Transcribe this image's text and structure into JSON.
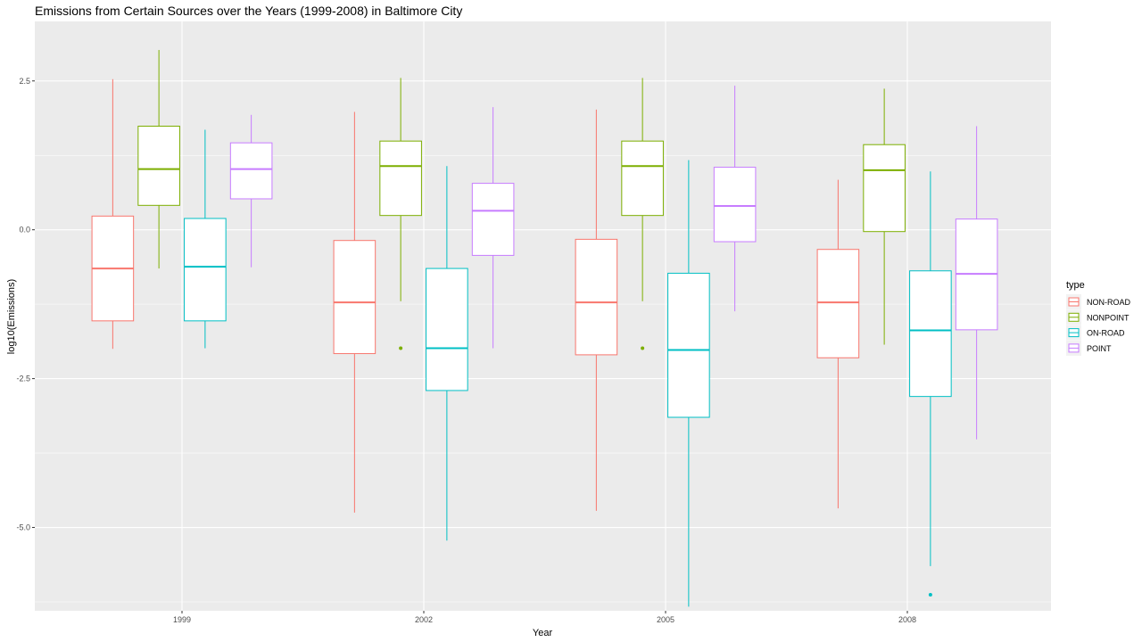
{
  "chart_data": {
    "type": "boxplot",
    "title": "Emissions from Certain Sources over the Years (1999-2008) in Baltimore City",
    "xlabel": "Year",
    "ylabel": "log10(Emissions)",
    "categories": [
      "1999",
      "2002",
      "2005",
      "2008"
    ],
    "ylim": [
      -6.4,
      3.5
    ],
    "yticks": [
      -5.0,
      -2.5,
      0.0,
      2.5
    ],
    "ytick_labels": [
      "-5.0",
      "-2.5",
      "0.0",
      "2.5"
    ],
    "grid": true,
    "legend": {
      "title": "type",
      "position": "right"
    },
    "series": [
      {
        "name": "NON-ROAD",
        "color": "#F8766D",
        "boxes": [
          {
            "min": -2.0,
            "q1": -1.53,
            "median": -0.65,
            "q3": 0.23,
            "max": 2.53,
            "outliers": []
          },
          {
            "min": -4.75,
            "q1": -2.08,
            "median": -1.22,
            "q3": -0.18,
            "max": 1.98,
            "outliers": []
          },
          {
            "min": -4.72,
            "q1": -2.1,
            "median": -1.22,
            "q3": -0.16,
            "max": 2.02,
            "outliers": []
          },
          {
            "min": -4.68,
            "q1": -2.15,
            "median": -1.22,
            "q3": -0.33,
            "max": 0.84,
            "outliers": []
          }
        ]
      },
      {
        "name": "NONPOINT",
        "color": "#7CAE00",
        "boxes": [
          {
            "min": -0.65,
            "q1": 0.41,
            "median": 1.02,
            "q3": 1.74,
            "max": 3.02,
            "outliers": []
          },
          {
            "min": -1.2,
            "q1": 0.24,
            "median": 1.07,
            "q3": 1.49,
            "max": 2.55,
            "outliers": [
              -1.99
            ]
          },
          {
            "min": -1.2,
            "q1": 0.24,
            "median": 1.07,
            "q3": 1.49,
            "max": 2.55,
            "outliers": [
              -1.99
            ]
          },
          {
            "min": -1.93,
            "q1": -0.03,
            "median": 1.0,
            "q3": 1.43,
            "max": 2.37,
            "outliers": []
          }
        ]
      },
      {
        "name": "ON-ROAD",
        "color": "#00BFC4",
        "boxes": [
          {
            "min": -1.99,
            "q1": -1.53,
            "median": -0.62,
            "q3": 0.19,
            "max": 1.68,
            "outliers": []
          },
          {
            "min": -5.22,
            "q1": -2.7,
            "median": -1.99,
            "q3": -0.65,
            "max": 1.07,
            "outliers": []
          },
          {
            "min": -6.33,
            "q1": -3.15,
            "median": -2.02,
            "q3": -0.73,
            "max": 1.17,
            "outliers": []
          },
          {
            "min": -5.65,
            "q1": -2.8,
            "median": -1.69,
            "q3": -0.69,
            "max": 0.98,
            "outliers": [
              -6.13
            ]
          }
        ]
      },
      {
        "name": "POINT",
        "color": "#C77CFF",
        "boxes": [
          {
            "min": -0.63,
            "q1": 0.52,
            "median": 1.02,
            "q3": 1.46,
            "max": 1.93,
            "outliers": []
          },
          {
            "min": -1.99,
            "q1": -0.43,
            "median": 0.32,
            "q3": 0.78,
            "max": 2.06,
            "outliers": []
          },
          {
            "min": -1.37,
            "q1": -0.2,
            "median": 0.4,
            "q3": 1.05,
            "max": 2.42,
            "outliers": []
          },
          {
            "min": -3.52,
            "q1": -1.68,
            "median": -0.74,
            "q3": 0.18,
            "max": 1.74,
            "outliers": []
          }
        ]
      }
    ]
  }
}
